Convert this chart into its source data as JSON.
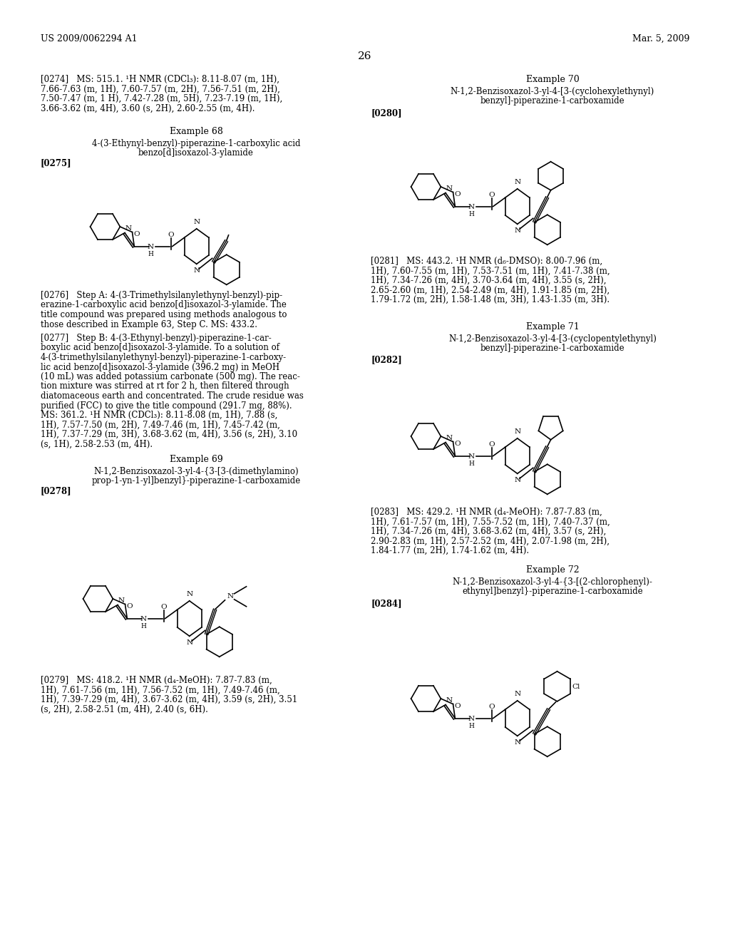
{
  "bg_color": "#ffffff",
  "header_left": "US 2009/0062294 A1",
  "header_right": "Mar. 5, 2009",
  "page_number": "26"
}
